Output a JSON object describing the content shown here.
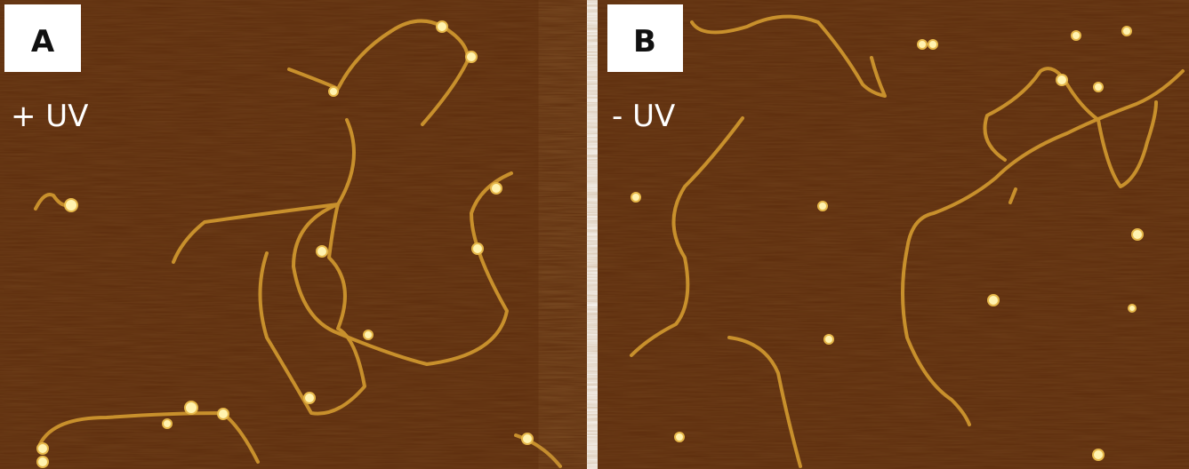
{
  "panels": [
    {
      "letter": "A",
      "condition": "+ UV"
    },
    {
      "letter": "B",
      "condition": "- UV"
    }
  ]
}
